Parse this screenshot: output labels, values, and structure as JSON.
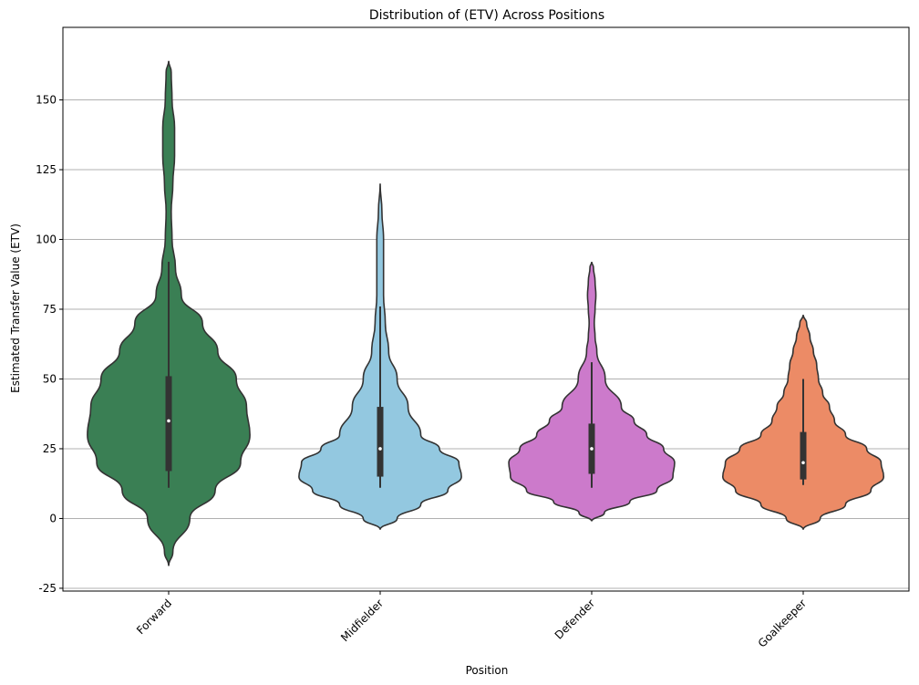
{
  "chart_data": {
    "type": "violin",
    "title": "Distribution of (ETV) Across Positions",
    "xlabel": "Position",
    "ylabel": "Estimated Transfer Value (ETV)",
    "ylim": [
      -26,
      176
    ],
    "yticks": [
      -25,
      0,
      25,
      50,
      75,
      100,
      125,
      150
    ],
    "grid": "y",
    "categories": [
      "Forward",
      "Midfielder",
      "Defender",
      "Goalkeeper"
    ],
    "colors": [
      "#3a7f54",
      "#93c8e0",
      "#cc7acb",
      "#ec8b66"
    ],
    "edge_color": "#333333",
    "series": [
      {
        "category": "Forward",
        "min": 11,
        "q1": 17,
        "median": 35,
        "q3": 51,
        "max": 92,
        "density": [
          [
            -17,
            0.0
          ],
          [
            -12,
            0.05
          ],
          [
            0,
            0.25
          ],
          [
            10,
            0.55
          ],
          [
            20,
            0.85
          ],
          [
            30,
            0.96
          ],
          [
            40,
            0.92
          ],
          [
            50,
            0.8
          ],
          [
            60,
            0.58
          ],
          [
            70,
            0.4
          ],
          [
            80,
            0.15
          ],
          [
            90,
            0.08
          ],
          [
            100,
            0.04
          ],
          [
            110,
            0.03
          ],
          [
            120,
            0.05
          ],
          [
            130,
            0.07
          ],
          [
            140,
            0.07
          ],
          [
            150,
            0.04
          ],
          [
            160,
            0.03
          ],
          [
            164,
            0.0
          ]
        ]
      },
      {
        "category": "Midfielder",
        "min": 11,
        "q1": 15,
        "median": 25,
        "q3": 40,
        "max": 76,
        "density": [
          [
            -4,
            0.0
          ],
          [
            0,
            0.2
          ],
          [
            5,
            0.48
          ],
          [
            10,
            0.8
          ],
          [
            15,
            0.96
          ],
          [
            20,
            0.93
          ],
          [
            25,
            0.7
          ],
          [
            30,
            0.48
          ],
          [
            40,
            0.33
          ],
          [
            50,
            0.2
          ],
          [
            60,
            0.1
          ],
          [
            70,
            0.06
          ],
          [
            80,
            0.04
          ],
          [
            90,
            0.04
          ],
          [
            100,
            0.04
          ],
          [
            110,
            0.02
          ],
          [
            120,
            0.0
          ]
        ]
      },
      {
        "category": "Defender",
        "min": 11,
        "q1": 16,
        "median": 25,
        "q3": 34,
        "max": 56,
        "density": [
          [
            -1,
            0.0
          ],
          [
            2,
            0.15
          ],
          [
            6,
            0.45
          ],
          [
            10,
            0.77
          ],
          [
            15,
            0.96
          ],
          [
            20,
            0.98
          ],
          [
            25,
            0.85
          ],
          [
            30,
            0.65
          ],
          [
            35,
            0.5
          ],
          [
            40,
            0.35
          ],
          [
            50,
            0.16
          ],
          [
            60,
            0.06
          ],
          [
            65,
            0.04
          ],
          [
            70,
            0.03
          ],
          [
            75,
            0.04
          ],
          [
            80,
            0.05
          ],
          [
            85,
            0.04
          ],
          [
            90,
            0.02
          ],
          [
            92,
            0.0
          ]
        ]
      },
      {
        "category": "Goalkeeper",
        "min": 12,
        "q1": 14,
        "median": 20,
        "q3": 31,
        "max": 50,
        "density": [
          [
            -4,
            0.0
          ],
          [
            0,
            0.2
          ],
          [
            5,
            0.5
          ],
          [
            10,
            0.8
          ],
          [
            15,
            0.95
          ],
          [
            20,
            0.92
          ],
          [
            25,
            0.75
          ],
          [
            30,
            0.5
          ],
          [
            35,
            0.37
          ],
          [
            40,
            0.31
          ],
          [
            45,
            0.23
          ],
          [
            50,
            0.18
          ],
          [
            55,
            0.16
          ],
          [
            60,
            0.12
          ],
          [
            65,
            0.08
          ],
          [
            70,
            0.04
          ],
          [
            73,
            0.0
          ]
        ]
      }
    ]
  }
}
